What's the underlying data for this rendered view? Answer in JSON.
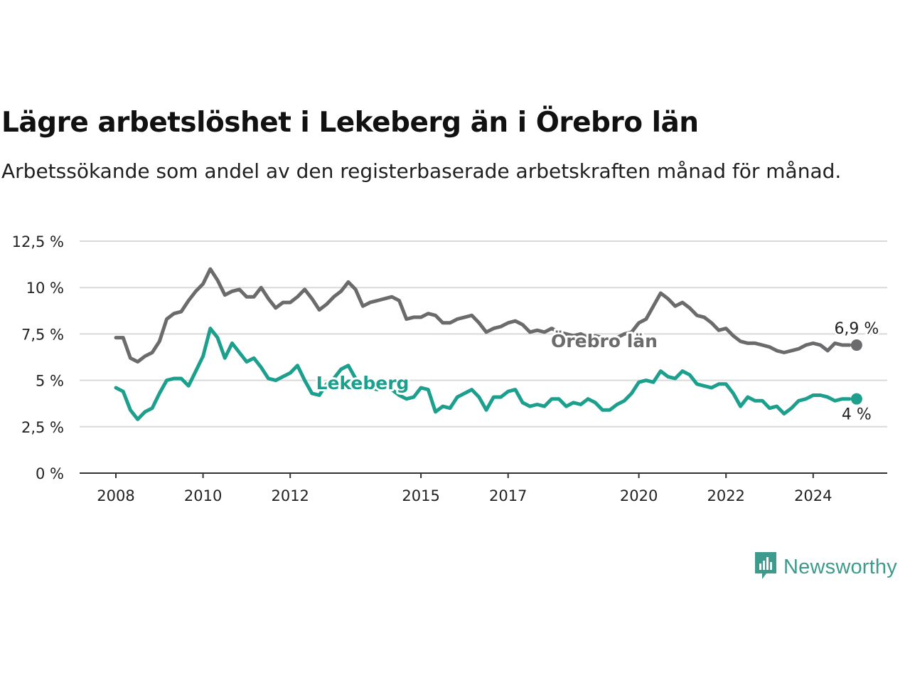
{
  "title": "Lägre arbetslöshet i Lekeberg än i Örebro län",
  "subtitle": "Arbetssökande som andel av den registerbaserade arbetskraften månad för månad.",
  "brand": {
    "name": "Newsworthy",
    "icon": "newsworthy-logo-icon",
    "color": "#3d9b8d"
  },
  "chart_data": {
    "type": "line",
    "title": "Lägre arbetslöshet i Lekeberg än i Örebro län",
    "ylabel": "",
    "xlabel": "",
    "ylim": [
      0,
      12.5
    ],
    "xlim": [
      "2008-01",
      "2025-12"
    ],
    "grid": true,
    "legend": "inline labels",
    "y_ticks": [
      {
        "value": 0,
        "label": "0 %"
      },
      {
        "value": 2.5,
        "label": "2,5 %"
      },
      {
        "value": 5,
        "label": "5 %"
      },
      {
        "value": 7.5,
        "label": "7,5 %"
      },
      {
        "value": 10,
        "label": "10 %"
      },
      {
        "value": 12.5,
        "label": "12,5 %"
      }
    ],
    "x_ticks": [
      {
        "value": "2008-01",
        "label": "2008"
      },
      {
        "value": "2010-01",
        "label": "2010"
      },
      {
        "value": "2012-01",
        "label": "2012"
      },
      {
        "value": "2015-01",
        "label": "2015"
      },
      {
        "value": "2017-01",
        "label": "2017"
      },
      {
        "value": "2020-01",
        "label": "2020"
      },
      {
        "value": "2022-01",
        "label": "2022"
      },
      {
        "value": "2024-01",
        "label": "2024"
      }
    ],
    "series": [
      {
        "name": "Örebro län",
        "color": "#6b6b6d",
        "end_label": "6,9 %",
        "points": [
          [
            "2008-01",
            7.3
          ],
          [
            "2008-03",
            7.3
          ],
          [
            "2008-05",
            6.2
          ],
          [
            "2008-07",
            6.0
          ],
          [
            "2008-09",
            6.3
          ],
          [
            "2008-11",
            6.5
          ],
          [
            "2009-01",
            7.1
          ],
          [
            "2009-03",
            8.3
          ],
          [
            "2009-05",
            8.6
          ],
          [
            "2009-07",
            8.7
          ],
          [
            "2009-09",
            9.3
          ],
          [
            "2009-11",
            9.8
          ],
          [
            "2010-01",
            10.2
          ],
          [
            "2010-03",
            11.0
          ],
          [
            "2010-05",
            10.4
          ],
          [
            "2010-07",
            9.6
          ],
          [
            "2010-09",
            9.8
          ],
          [
            "2010-11",
            9.9
          ],
          [
            "2011-01",
            9.5
          ],
          [
            "2011-03",
            9.5
          ],
          [
            "2011-05",
            10.0
          ],
          [
            "2011-07",
            9.4
          ],
          [
            "2011-09",
            8.9
          ],
          [
            "2011-11",
            9.2
          ],
          [
            "2012-01",
            9.2
          ],
          [
            "2012-03",
            9.5
          ],
          [
            "2012-05",
            9.9
          ],
          [
            "2012-07",
            9.4
          ],
          [
            "2012-09",
            8.8
          ],
          [
            "2012-11",
            9.1
          ],
          [
            "2013-01",
            9.5
          ],
          [
            "2013-03",
            9.8
          ],
          [
            "2013-05",
            10.3
          ],
          [
            "2013-07",
            9.9
          ],
          [
            "2013-09",
            9.0
          ],
          [
            "2013-11",
            9.2
          ],
          [
            "2014-01",
            9.3
          ],
          [
            "2014-03",
            9.4
          ],
          [
            "2014-05",
            9.5
          ],
          [
            "2014-07",
            9.3
          ],
          [
            "2014-09",
            8.3
          ],
          [
            "2014-11",
            8.4
          ],
          [
            "2015-01",
            8.4
          ],
          [
            "2015-03",
            8.6
          ],
          [
            "2015-05",
            8.5
          ],
          [
            "2015-07",
            8.1
          ],
          [
            "2015-09",
            8.1
          ],
          [
            "2015-11",
            8.3
          ],
          [
            "2016-01",
            8.4
          ],
          [
            "2016-03",
            8.5
          ],
          [
            "2016-05",
            8.1
          ],
          [
            "2016-07",
            7.6
          ],
          [
            "2016-09",
            7.8
          ],
          [
            "2016-11",
            7.9
          ],
          [
            "2017-01",
            8.1
          ],
          [
            "2017-03",
            8.2
          ],
          [
            "2017-05",
            8.0
          ],
          [
            "2017-07",
            7.6
          ],
          [
            "2017-09",
            7.7
          ],
          [
            "2017-11",
            7.6
          ],
          [
            "2018-01",
            7.8
          ],
          [
            "2018-03",
            7.6
          ],
          [
            "2018-05",
            7.5
          ],
          [
            "2018-07",
            7.4
          ],
          [
            "2018-09",
            7.5
          ],
          [
            "2018-11",
            7.3
          ],
          [
            "2019-01",
            7.4
          ],
          [
            "2019-03",
            7.3
          ],
          [
            "2019-05",
            7.2
          ],
          [
            "2019-07",
            7.3
          ],
          [
            "2019-09",
            7.5
          ],
          [
            "2019-11",
            7.6
          ],
          [
            "2020-01",
            8.1
          ],
          [
            "2020-03",
            8.3
          ],
          [
            "2020-05",
            9.0
          ],
          [
            "2020-07",
            9.7
          ],
          [
            "2020-09",
            9.4
          ],
          [
            "2020-11",
            9.0
          ],
          [
            "2021-01",
            9.2
          ],
          [
            "2021-03",
            8.9
          ],
          [
            "2021-05",
            8.5
          ],
          [
            "2021-07",
            8.4
          ],
          [
            "2021-09",
            8.1
          ],
          [
            "2021-11",
            7.7
          ],
          [
            "2022-01",
            7.8
          ],
          [
            "2022-03",
            7.4
          ],
          [
            "2022-05",
            7.1
          ],
          [
            "2022-07",
            7.0
          ],
          [
            "2022-09",
            7.0
          ],
          [
            "2022-11",
            6.9
          ],
          [
            "2023-01",
            6.8
          ],
          [
            "2023-03",
            6.6
          ],
          [
            "2023-05",
            6.5
          ],
          [
            "2023-07",
            6.6
          ],
          [
            "2023-09",
            6.7
          ],
          [
            "2023-11",
            6.9
          ],
          [
            "2024-01",
            7.0
          ],
          [
            "2024-03",
            6.9
          ],
          [
            "2024-05",
            6.6
          ],
          [
            "2024-07",
            7.0
          ],
          [
            "2024-09",
            6.9
          ],
          [
            "2024-11",
            6.9
          ]
        ]
      },
      {
        "name": "Lekeberg",
        "color": "#1d9f8e",
        "end_label": "4 %",
        "points": [
          [
            "2008-01",
            4.6
          ],
          [
            "2008-03",
            4.4
          ],
          [
            "2008-05",
            3.4
          ],
          [
            "2008-07",
            2.9
          ],
          [
            "2008-09",
            3.3
          ],
          [
            "2008-11",
            3.5
          ],
          [
            "2009-01",
            4.3
          ],
          [
            "2009-03",
            5.0
          ],
          [
            "2009-05",
            5.1
          ],
          [
            "2009-07",
            5.1
          ],
          [
            "2009-09",
            4.7
          ],
          [
            "2009-11",
            5.5
          ],
          [
            "2010-01",
            6.3
          ],
          [
            "2010-03",
            7.8
          ],
          [
            "2010-05",
            7.3
          ],
          [
            "2010-07",
            6.2
          ],
          [
            "2010-09",
            7.0
          ],
          [
            "2010-11",
            6.5
          ],
          [
            "2011-01",
            6.0
          ],
          [
            "2011-03",
            6.2
          ],
          [
            "2011-05",
            5.7
          ],
          [
            "2011-07",
            5.1
          ],
          [
            "2011-09",
            5.0
          ],
          [
            "2011-11",
            5.2
          ],
          [
            "2012-01",
            5.4
          ],
          [
            "2012-03",
            5.8
          ],
          [
            "2012-05",
            5.0
          ],
          [
            "2012-07",
            4.3
          ],
          [
            "2012-09",
            4.2
          ],
          [
            "2012-11",
            4.8
          ],
          [
            "2013-01",
            5.1
          ],
          [
            "2013-03",
            5.6
          ],
          [
            "2013-05",
            5.8
          ],
          [
            "2013-07",
            5.1
          ],
          [
            "2013-09",
            4.8
          ],
          [
            "2013-11",
            4.6
          ],
          [
            "2014-01",
            4.5
          ],
          [
            "2014-03",
            4.6
          ],
          [
            "2014-05",
            4.5
          ],
          [
            "2014-07",
            4.2
          ],
          [
            "2014-09",
            4.0
          ],
          [
            "2014-11",
            4.1
          ],
          [
            "2015-01",
            4.6
          ],
          [
            "2015-03",
            4.5
          ],
          [
            "2015-05",
            3.3
          ],
          [
            "2015-07",
            3.6
          ],
          [
            "2015-09",
            3.5
          ],
          [
            "2015-11",
            4.1
          ],
          [
            "2016-01",
            4.3
          ],
          [
            "2016-03",
            4.5
          ],
          [
            "2016-05",
            4.1
          ],
          [
            "2016-07",
            3.4
          ],
          [
            "2016-09",
            4.1
          ],
          [
            "2016-11",
            4.1
          ],
          [
            "2017-01",
            4.4
          ],
          [
            "2017-03",
            4.5
          ],
          [
            "2017-05",
            3.8
          ],
          [
            "2017-07",
            3.6
          ],
          [
            "2017-09",
            3.7
          ],
          [
            "2017-11",
            3.6
          ],
          [
            "2018-01",
            4.0
          ],
          [
            "2018-03",
            4.0
          ],
          [
            "2018-05",
            3.6
          ],
          [
            "2018-07",
            3.8
          ],
          [
            "2018-09",
            3.7
          ],
          [
            "2018-11",
            4.0
          ],
          [
            "2019-01",
            3.8
          ],
          [
            "2019-03",
            3.4
          ],
          [
            "2019-05",
            3.4
          ],
          [
            "2019-07",
            3.7
          ],
          [
            "2019-09",
            3.9
          ],
          [
            "2019-11",
            4.3
          ],
          [
            "2020-01",
            4.9
          ],
          [
            "2020-03",
            5.0
          ],
          [
            "2020-05",
            4.9
          ],
          [
            "2020-07",
            5.5
          ],
          [
            "2020-09",
            5.2
          ],
          [
            "2020-11",
            5.1
          ],
          [
            "2021-01",
            5.5
          ],
          [
            "2021-03",
            5.3
          ],
          [
            "2021-05",
            4.8
          ],
          [
            "2021-07",
            4.7
          ],
          [
            "2021-09",
            4.6
          ],
          [
            "2021-11",
            4.8
          ],
          [
            "2022-01",
            4.8
          ],
          [
            "2022-03",
            4.3
          ],
          [
            "2022-05",
            3.6
          ],
          [
            "2022-07",
            4.1
          ],
          [
            "2022-09",
            3.9
          ],
          [
            "2022-11",
            3.9
          ],
          [
            "2023-01",
            3.5
          ],
          [
            "2023-03",
            3.6
          ],
          [
            "2023-05",
            3.2
          ],
          [
            "2023-07",
            3.5
          ],
          [
            "2023-09",
            3.9
          ],
          [
            "2023-11",
            4.0
          ],
          [
            "2024-01",
            4.2
          ],
          [
            "2024-03",
            4.2
          ],
          [
            "2024-05",
            4.1
          ],
          [
            "2024-07",
            3.9
          ],
          [
            "2024-09",
            4.0
          ],
          [
            "2024-11",
            4.0
          ]
        ]
      }
    ]
  }
}
